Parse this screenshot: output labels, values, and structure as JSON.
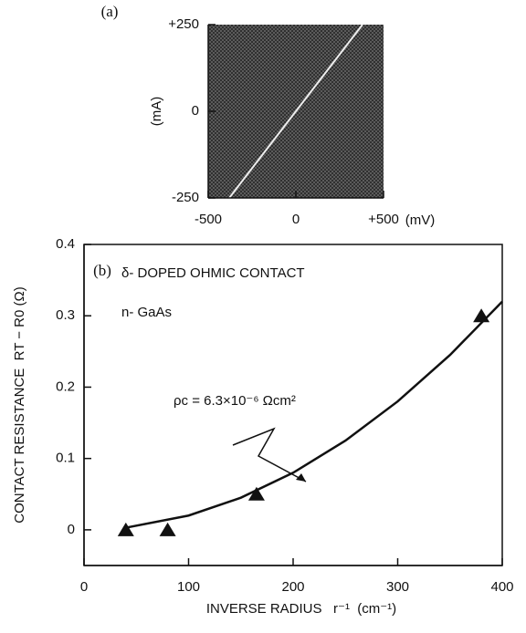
{
  "chart_data": [
    {
      "type": "line",
      "label": "(a)",
      "x": [
        -380,
        380
      ],
      "values": [
        -250,
        250
      ],
      "xlim": [
        -500,
        500
      ],
      "ylim": [
        -250,
        250
      ],
      "xticks": [
        -500,
        0,
        {
          "value": 500,
          "label": "+500"
        }
      ],
      "yticks": [
        -250,
        0,
        {
          "value": 250,
          "label": "+250"
        }
      ],
      "xlabel": "(mV)",
      "ylabel": "(mA)"
    },
    {
      "type": "scatter",
      "label": "(b)",
      "x": [
        40,
        80,
        165,
        380
      ],
      "values": [
        0,
        0,
        0.05,
        0.3
      ],
      "curve": {
        "x": [
          40,
          100,
          150,
          200,
          250,
          300,
          350,
          400
        ],
        "values": [
          0.003,
          0.02,
          0.045,
          0.08,
          0.125,
          0.18,
          0.245,
          0.32
        ]
      },
      "xlim": [
        0,
        400
      ],
      "ylim": [
        -0.05,
        0.4
      ],
      "xticks": [
        0,
        100,
        200,
        300,
        400
      ],
      "yticks": [
        0,
        0.1,
        0.2,
        0.3,
        0.4
      ],
      "xlabel": "INVERSE RADIUS   r⁻¹  (cm⁻¹)",
      "ylabel": "CONTACT RESISTANCE  RT − R0 (Ω)",
      "annotations": [
        "δ- DOPED OHMIC CONTACT",
        "n- GaAs",
        "ρc = 6.3×10⁻⁶ Ωcm²"
      ]
    }
  ]
}
